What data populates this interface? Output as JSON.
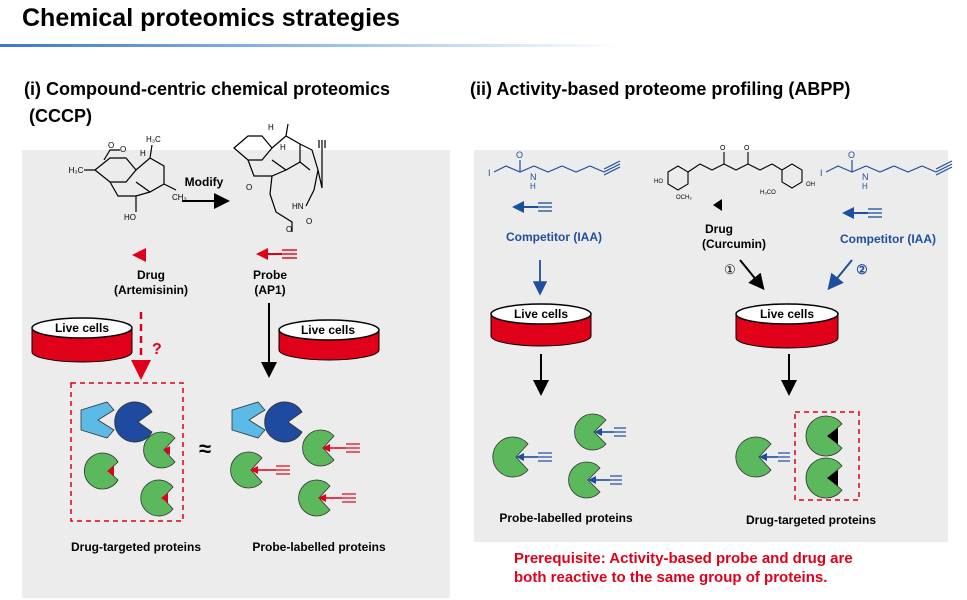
{
  "title": "Chemical proteomics strategies",
  "left": {
    "heading_line1": "(i) Compound-centric chemical proteomics",
    "heading_line2": "(CCCP)",
    "modify_label": "Modify",
    "drug_label_1": "Drug",
    "drug_label_2": "(Artemisinin)",
    "probe_label_1": "Probe",
    "probe_label_2": "(AP1)",
    "live_cells": "Live cells",
    "question": "?",
    "approx": "≈",
    "drug_targeted": "Drug-targeted proteins",
    "probe_labelled": "Probe-labelled proteins",
    "mol_h3c": "H₃C",
    "mol_h": "H",
    "mol_ho": "HO",
    "mol_ch3": "CH₃",
    "mol_hn": "HN",
    "mol_o": "O"
  },
  "right": {
    "heading": "(ii) Activity-based proteome profiling (ABPP)",
    "competitor_1": "Competitor (IAA)",
    "competitor_2": "Competitor (IAA)",
    "drug_label_1": "Drug",
    "drug_label_2": "(Curcumin)",
    "step_1": "①",
    "step_2": "②",
    "live_cells_1": "Live cells",
    "live_cells_2": "Live cells",
    "probe_labelled": "Probe-labelled proteins",
    "drug_targeted": "Drug-targeted proteins",
    "mol_i": "I",
    "mol_o": "O",
    "mol_n": "N",
    "mol_h": "H",
    "mol_ho": "HO",
    "mol_oh": "OH",
    "mol_och3": "OCH₃",
    "mol_h3co": "H₃CO"
  },
  "prerequisite_line1": "Prerequisite: Activity-based probe and drug are",
  "prerequisite_line2": "both reactive to the same group of proteins.",
  "colors": {
    "red": "#e0001a",
    "blue": "#1f4e9e",
    "light_blue": "#5bbbe6",
    "dark_blue": "#1e4aa0",
    "green": "#5cb85c",
    "panel": "#ececec"
  }
}
